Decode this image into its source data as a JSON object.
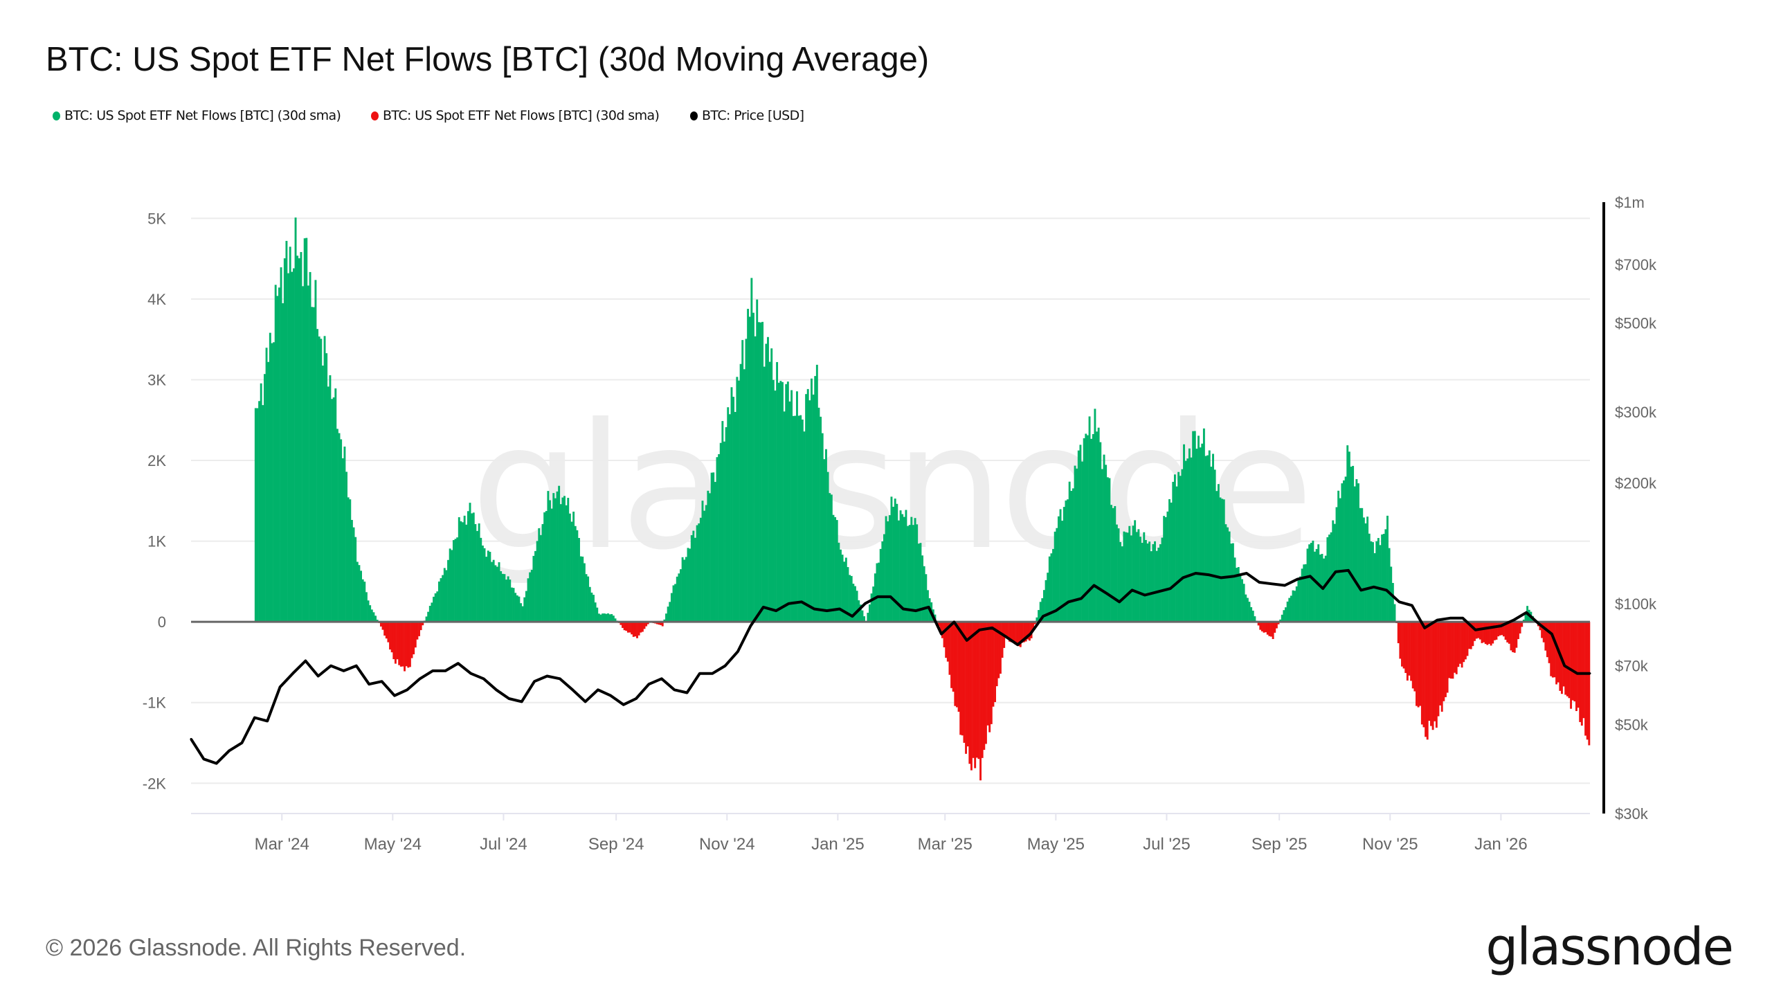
{
  "title": "BTC: US Spot ETF Net Flows [BTC] (30d Moving Average)",
  "legend": [
    {
      "label": "BTC: US Spot ETF Net Flows [BTC] (30d sma)",
      "color": "#00b26a"
    },
    {
      "label": "BTC: US Spot ETF Net Flows [BTC] (30d sma)",
      "color": "#ee1111"
    },
    {
      "label": "BTC: Price [USD]",
      "color": "#000000"
    }
  ],
  "footer": {
    "copyright": "© 2026 Glassnode. All Rights Reserved.",
    "logo": "glassnode",
    "watermark": "glassnode"
  },
  "chart_data": {
    "type": "area",
    "title": "BTC: US Spot ETF Net Flows [BTC] (30d Moving Average)",
    "grid": true,
    "legend_position": "top-left",
    "x_ticks": [
      "Mar '24",
      "May '24",
      "Jul '24",
      "Sep '24",
      "Nov '24",
      "Jan '25",
      "Mar '25",
      "May '25",
      "Jul '25",
      "Sep '25",
      "Nov '25",
      "Jan '26"
    ],
    "x_tick_dates": [
      "2024-03-01",
      "2024-05-01",
      "2024-07-01",
      "2024-09-01",
      "2024-11-01",
      "2025-01-01",
      "2025-03-01",
      "2025-05-01",
      "2025-07-01",
      "2025-09-01",
      "2025-11-01",
      "2026-01-01"
    ],
    "xlim": [
      "2024-01-11",
      "2026-02-19"
    ],
    "y_left": {
      "ticks": [
        5000,
        4000,
        3000,
        2000,
        1000,
        0,
        -1000,
        -2000
      ],
      "tick_labels": [
        "5K",
        "4K",
        "3K",
        "2K",
        "1K",
        "0",
        "-1K",
        "-2K"
      ],
      "ylim": [
        -2375,
        5200
      ]
    },
    "y_right": {
      "scale": "log",
      "ticks": [
        1000000,
        700000,
        500000,
        300000,
        200000,
        100000,
        70000,
        50000,
        30000
      ],
      "tick_labels": [
        "$1m",
        "$700k",
        "$500k",
        "$300k",
        "$200k",
        "$100k",
        "$70k",
        "$50k",
        "$30k"
      ],
      "ylim": [
        30000,
        1000000
      ]
    },
    "positive_color": "#00b26a",
    "negative_color": "#ee1111",
    "price_color": "#000000",
    "x": [
      "2024-01-11",
      "2024-01-18",
      "2024-01-25",
      "2024-02-01",
      "2024-02-08",
      "2024-02-15",
      "2024-02-22",
      "2024-02-29",
      "2024-03-07",
      "2024-03-14",
      "2024-03-21",
      "2024-03-28",
      "2024-04-04",
      "2024-04-11",
      "2024-04-18",
      "2024-04-25",
      "2024-05-02",
      "2024-05-09",
      "2024-05-16",
      "2024-05-23",
      "2024-05-30",
      "2024-06-06",
      "2024-06-13",
      "2024-06-20",
      "2024-06-27",
      "2024-07-04",
      "2024-07-11",
      "2024-07-18",
      "2024-07-25",
      "2024-08-01",
      "2024-08-08",
      "2024-08-15",
      "2024-08-22",
      "2024-08-29",
      "2024-09-05",
      "2024-09-12",
      "2024-09-19",
      "2024-09-26",
      "2024-10-03",
      "2024-10-10",
      "2024-10-17",
      "2024-10-24",
      "2024-10-31",
      "2024-11-07",
      "2024-11-14",
      "2024-11-21",
      "2024-11-28",
      "2024-12-05",
      "2024-12-12",
      "2024-12-19",
      "2024-12-26",
      "2025-01-02",
      "2025-01-09",
      "2025-01-16",
      "2025-01-23",
      "2025-01-30",
      "2025-02-06",
      "2025-02-13",
      "2025-02-20",
      "2025-02-27",
      "2025-03-06",
      "2025-03-13",
      "2025-03-20",
      "2025-03-27",
      "2025-04-03",
      "2025-04-10",
      "2025-04-17",
      "2025-04-24",
      "2025-05-01",
      "2025-05-08",
      "2025-05-15",
      "2025-05-22",
      "2025-05-29",
      "2025-06-05",
      "2025-06-12",
      "2025-06-19",
      "2025-06-26",
      "2025-07-03",
      "2025-07-10",
      "2025-07-17",
      "2025-07-24",
      "2025-07-31",
      "2025-08-07",
      "2025-08-14",
      "2025-08-21",
      "2025-08-28",
      "2025-09-04",
      "2025-09-11",
      "2025-09-18",
      "2025-09-25",
      "2025-10-02",
      "2025-10-09",
      "2025-10-16",
      "2025-10-23",
      "2025-10-30",
      "2025-11-06",
      "2025-11-13",
      "2025-11-20",
      "2025-11-27",
      "2025-12-04",
      "2025-12-11",
      "2025-12-18",
      "2025-12-25",
      "2026-01-01",
      "2026-01-08",
      "2026-01-15",
      "2026-01-22",
      "2026-01-29",
      "2026-02-05",
      "2026-02-12",
      "2026-02-19"
    ],
    "series": [
      {
        "name": "BTC: US Spot ETF Net Flows [BTC] (30d sma)",
        "axis": "left",
        "values": [
          null,
          null,
          null,
          null,
          null,
          2500,
          3300,
          4300,
          4600,
          4500,
          3600,
          2900,
          2000,
          800,
          200,
          -100,
          -500,
          -600,
          -100,
          300,
          700,
          1200,
          1400,
          900,
          700,
          500,
          200,
          900,
          1500,
          1600,
          1300,
          600,
          100,
          100,
          -100,
          -200,
          0,
          -50,
          500,
          900,
          1300,
          1800,
          2500,
          3000,
          4000,
          3500,
          3000,
          2800,
          2500,
          3100,
          1800,
          900,
          500,
          0,
          800,
          1500,
          1300,
          1200,
          300,
          -200,
          -1000,
          -1700,
          -1800,
          -1100,
          -200,
          -300,
          -200,
          400,
          1200,
          1600,
          2200,
          2500,
          1800,
          1000,
          1200,
          1000,
          900,
          1600,
          2000,
          2300,
          2100,
          1500,
          800,
          300,
          -100,
          -200,
          200,
          500,
          1000,
          800,
          1400,
          2100,
          1400,
          900,
          1200,
          -500,
          -800,
          -1400,
          -1200,
          -700,
          -500,
          -200,
          -300,
          -150,
          -400,
          200,
          -100,
          -700,
          -900,
          -1100,
          -1600
        ]
      },
      {
        "name": "BTC: Price [USD]",
        "axis": "right",
        "values": [
          46000,
          41000,
          40000,
          43000,
          45000,
          52000,
          51000,
          62000,
          67000,
          72000,
          66000,
          70000,
          68000,
          70000,
          63000,
          64000,
          59000,
          61000,
          65000,
          68000,
          68000,
          71000,
          67000,
          65000,
          61000,
          58000,
          57000,
          64000,
          66000,
          65000,
          61000,
          57000,
          61000,
          59000,
          56000,
          58000,
          63000,
          65000,
          61000,
          60000,
          67000,
          67000,
          70000,
          76000,
          88000,
          98000,
          96000,
          100000,
          101000,
          97000,
          96000,
          97000,
          93000,
          100000,
          104000,
          104000,
          97000,
          96000,
          98000,
          84000,
          90000,
          81000,
          86000,
          87000,
          83000,
          79000,
          84000,
          93000,
          96000,
          101000,
          103000,
          111000,
          106000,
          101000,
          108000,
          105000,
          107000,
          109000,
          116000,
          119000,
          118000,
          116000,
          117000,
          119000,
          113000,
          112000,
          111000,
          115000,
          117000,
          109000,
          120000,
          121000,
          108000,
          110000,
          108000,
          101000,
          99000,
          87000,
          91000,
          92000,
          92000,
          86000,
          87000,
          88000,
          91000,
          95000,
          89000,
          84000,
          70000,
          67000,
          67000
        ]
      }
    ]
  }
}
